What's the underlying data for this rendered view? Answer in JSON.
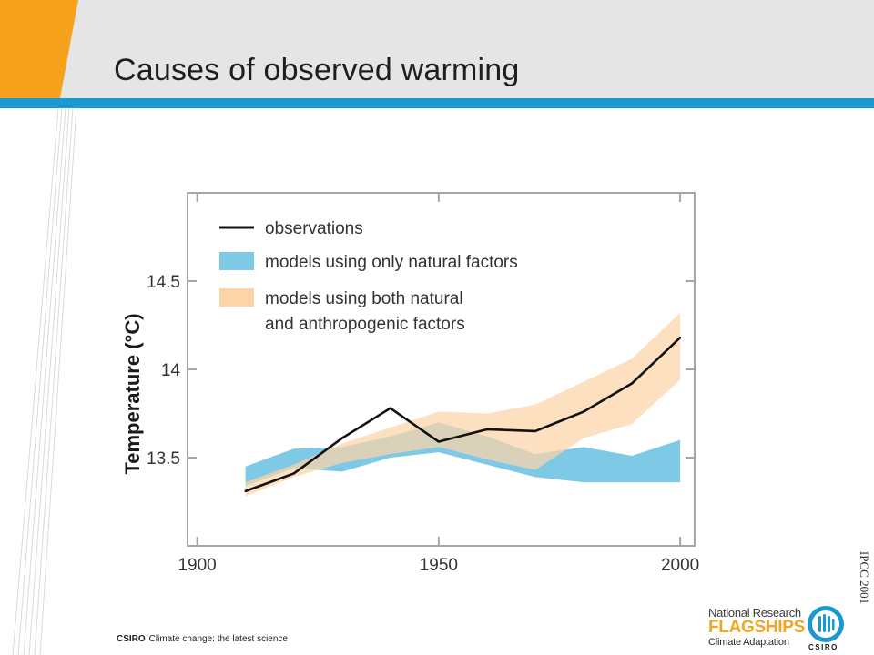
{
  "slide": {
    "title": "Causes of observed warming",
    "source_note": "IPCC 2001",
    "footer_org": "CSIRO",
    "footer_text": "Climate change: the latest science",
    "logo_line1": "National Research",
    "logo_line2": "FLAGSHIPS",
    "logo_line3": "Climate Adaptation",
    "logo_wordmark": "CSIRO",
    "colors": {
      "header_band": "#e5e5e6",
      "accent_blue": "#1b98cf",
      "accent_orange": "#f7a21c",
      "flagships_orange": "#f3a521"
    }
  },
  "chart_data": {
    "type": "line",
    "title": "",
    "xlabel": "",
    "ylabel": "Temperature (°C)",
    "xlim": [
      1898,
      2003
    ],
    "ylim": [
      13.0,
      15.0
    ],
    "x_ticks": [
      1900,
      1950,
      2000
    ],
    "x_tick_labels": [
      "1900",
      "1950",
      "2000"
    ],
    "y_ticks": [
      13.5,
      14.0,
      14.5
    ],
    "y_tick_labels": [
      "13.5",
      "14",
      "14.5"
    ],
    "grid": false,
    "legend": {
      "placement": "top-left",
      "entries": [
        {
          "label": "observations",
          "kind": "line",
          "color": "#111111"
        },
        {
          "label": "models using only natural factors",
          "kind": "band",
          "color": "#7ecae6"
        },
        {
          "label": "models using both natural",
          "label_line2": "and anthropogenic factors",
          "kind": "band",
          "color": "#fcd4a8"
        }
      ]
    },
    "series": [
      {
        "name": "observations",
        "kind": "line",
        "color": "#111111",
        "x": [
          1910,
          1920,
          1930,
          1940,
          1950,
          1960,
          1970,
          1980,
          1990,
          2000
        ],
        "y": [
          13.31,
          13.41,
          13.61,
          13.78,
          13.59,
          13.66,
          13.65,
          13.76,
          13.92,
          14.18
        ]
      },
      {
        "name": "models using only natural factors",
        "kind": "band",
        "color": "#7ecae6",
        "x": [
          1910,
          1920,
          1930,
          1940,
          1950,
          1960,
          1970,
          1980,
          1990,
          2000
        ],
        "lower": [
          13.34,
          13.44,
          13.42,
          13.5,
          13.53,
          13.46,
          13.39,
          13.36,
          13.36,
          13.36
        ],
        "upper": [
          13.45,
          13.55,
          13.56,
          13.62,
          13.7,
          13.62,
          13.52,
          13.56,
          13.51,
          13.6
        ]
      },
      {
        "name": "models using both natural and anthropogenic factors",
        "kind": "band",
        "color": "#fcd4a8",
        "x": [
          1910,
          1920,
          1930,
          1940,
          1950,
          1960,
          1970,
          1980,
          1990,
          2000
        ],
        "lower": [
          13.28,
          13.39,
          13.47,
          13.52,
          13.56,
          13.49,
          13.43,
          13.61,
          13.69,
          13.94
        ],
        "upper": [
          13.36,
          13.46,
          13.58,
          13.67,
          13.76,
          13.75,
          13.8,
          13.93,
          14.06,
          14.32
        ]
      }
    ]
  }
}
